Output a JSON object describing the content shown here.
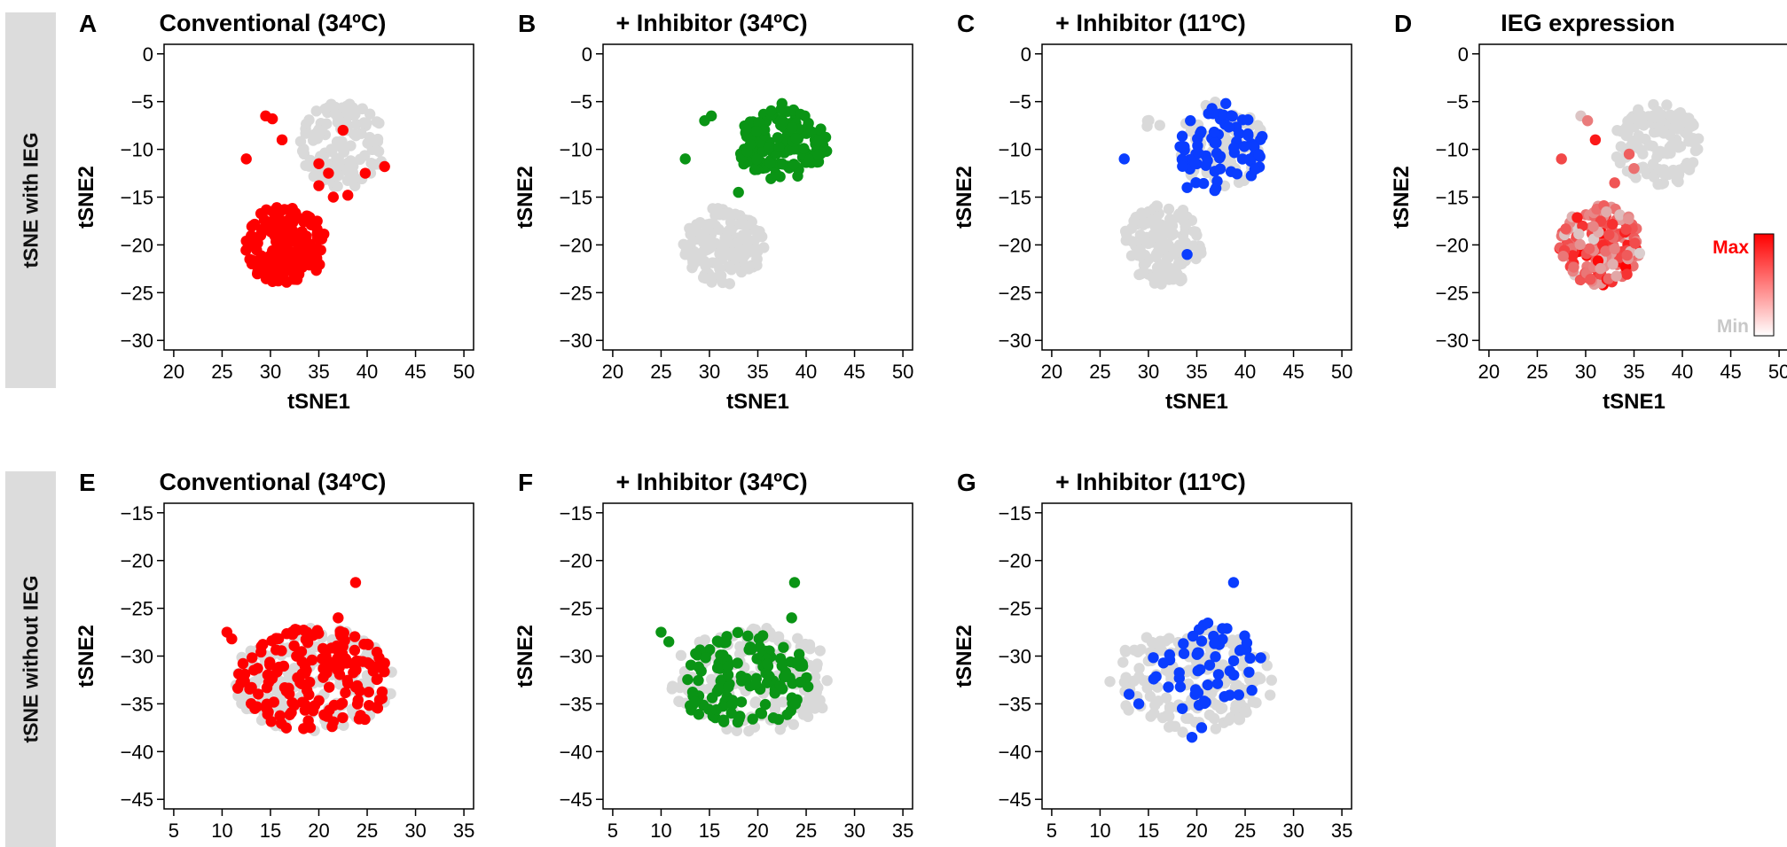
{
  "rows": [
    {
      "label": "tSNE with IEG"
    },
    {
      "label": "tSNE without IEG"
    }
  ],
  "colors": {
    "background_points": "#d9d9d9",
    "conventional": "#ff0000",
    "inhibitor34": "#0a9415",
    "inhibitor11": "#0a3dff",
    "ieg_max": "#ff0000",
    "ieg_min": "#d9d9d9"
  },
  "colorbar": {
    "max_label": "Max",
    "min_label": "Min"
  },
  "chart_data": [
    {
      "type": "scatter",
      "panel_letter": "A",
      "title": "Conventional (34ºC)",
      "xlabel": "tSNE1",
      "ylabel": "tSNE2",
      "xlim": [
        19,
        51
      ],
      "ylim": [
        -31,
        1
      ],
      "y_inverted": true,
      "xticks": [
        20,
        25,
        30,
        35,
        40,
        45,
        50
      ],
      "yticks": [
        0,
        -5,
        -10,
        -15,
        -20,
        -25,
        -30
      ],
      "highlight_color": "conventional",
      "background_clusters": [
        {
          "cx": 37.5,
          "cy": -9.5,
          "rx": 4.5,
          "ry": 4.5,
          "n": 130
        }
      ],
      "highlight_clusters": [
        {
          "cx": 31.5,
          "cy": -20.0,
          "rx": 4.2,
          "ry": 4.2,
          "n": 160
        }
      ],
      "highlight_points": [
        [
          29.5,
          -6.5
        ],
        [
          30.2,
          -6.8
        ],
        [
          31.2,
          -9.0
        ],
        [
          27.5,
          -11.0
        ],
        [
          35.0,
          -11.5
        ],
        [
          36.0,
          -12.5
        ],
        [
          37.5,
          -8.0
        ],
        [
          41.8,
          -11.8
        ],
        [
          39.8,
          -12.5
        ],
        [
          35.0,
          -13.8
        ],
        [
          36.5,
          -15.0
        ],
        [
          38.0,
          -14.8
        ]
      ]
    },
    {
      "type": "scatter",
      "panel_letter": "B",
      "title": "+ Inhibitor (34ºC)",
      "xlabel": "tSNE1",
      "ylabel": "tSNE2",
      "xlim": [
        19,
        51
      ],
      "ylim": [
        -31,
        1
      ],
      "y_inverted": true,
      "xticks": [
        20,
        25,
        30,
        35,
        40,
        45,
        50
      ],
      "yticks": [
        0,
        -5,
        -10,
        -15,
        -20,
        -25,
        -30
      ],
      "highlight_color": "inhibitor34",
      "background_clusters": [
        {
          "cx": 31.5,
          "cy": -20.0,
          "rx": 4.2,
          "ry": 4.2,
          "n": 150
        }
      ],
      "highlight_clusters": [
        {
          "cx": 37.5,
          "cy": -9.5,
          "rx": 4.8,
          "ry": 3.8,
          "n": 150
        }
      ],
      "highlight_points": [
        [
          27.5,
          -11.0
        ],
        [
          29.5,
          -7.0
        ],
        [
          30.2,
          -6.5
        ],
        [
          37.5,
          -5.2
        ],
        [
          33.0,
          -14.5
        ]
      ]
    },
    {
      "type": "scatter",
      "panel_letter": "C",
      "title": "+ Inhibitor (11ºC)",
      "xlabel": "tSNE1",
      "ylabel": "tSNE2",
      "xlim": [
        19,
        51
      ],
      "ylim": [
        -31,
        1
      ],
      "y_inverted": true,
      "xticks": [
        20,
        25,
        30,
        35,
        40,
        45,
        50
      ],
      "yticks": [
        0,
        -5,
        -10,
        -15,
        -20,
        -25,
        -30
      ],
      "highlight_color": "inhibitor11",
      "background_clusters": [
        {
          "cx": 37.5,
          "cy": -9.5,
          "rx": 4.5,
          "ry": 4.5,
          "n": 90
        },
        {
          "cx": 31.5,
          "cy": -20.0,
          "rx": 4.2,
          "ry": 4.2,
          "n": 150
        },
        {
          "cx": 30.0,
          "cy": -7.0,
          "rx": 1.5,
          "ry": 1.0,
          "n": 4
        }
      ],
      "highlight_clusters": [
        {
          "cx": 37.5,
          "cy": -10.0,
          "rx": 4.5,
          "ry": 4.5,
          "n": 75
        }
      ],
      "highlight_points": [
        [
          27.5,
          -11.0
        ],
        [
          34.0,
          -21.0
        ],
        [
          34.0,
          -14.0
        ],
        [
          38.0,
          -5.2
        ]
      ]
    },
    {
      "type": "scatter",
      "panel_letter": "D",
      "title": "IEG expression",
      "xlabel": "tSNE1",
      "ylabel": "tSNE2",
      "xlim": [
        19,
        51
      ],
      "ylim": [
        -31,
        1
      ],
      "y_inverted": true,
      "xticks": [
        20,
        25,
        30,
        35,
        40,
        45,
        50
      ],
      "yticks": [
        0,
        -5,
        -10,
        -15,
        -20,
        -25,
        -30
      ],
      "highlight_color": "ieg_max",
      "gradient": true,
      "background_clusters": [
        {
          "cx": 37.5,
          "cy": -9.5,
          "rx": 4.5,
          "ry": 4.5,
          "n": 130
        }
      ],
      "highlight_clusters": [
        {
          "cx": 31.5,
          "cy": -20.0,
          "rx": 4.2,
          "ry": 4.2,
          "n": 150
        }
      ],
      "highlight_points": [
        [
          29.5,
          -6.5
        ],
        [
          30.2,
          -7.0
        ],
        [
          31.0,
          -9.0
        ],
        [
          27.5,
          -11.0
        ],
        [
          33.0,
          -13.5
        ],
        [
          35.0,
          -12.0
        ],
        [
          34.5,
          -10.5
        ]
      ]
    },
    {
      "type": "scatter",
      "panel_letter": "E",
      "title": "Conventional (34ºC)",
      "xlabel": "",
      "ylabel": "tSNE2",
      "xlim": [
        4,
        36
      ],
      "ylim": [
        -46,
        -14
      ],
      "y_inverted": false,
      "xticks": [
        5,
        10,
        15,
        20,
        25,
        30,
        35
      ],
      "yticks": [
        -15,
        -20,
        -25,
        -30,
        -35,
        -40,
        -45
      ],
      "highlight_color": "conventional",
      "background_clusters": [
        {
          "cx": 19.5,
          "cy": -32.5,
          "rx": 8.5,
          "ry": 5.5,
          "n": 170
        }
      ],
      "highlight_clusters": [
        {
          "cx": 19.5,
          "cy": -32.5,
          "rx": 8.0,
          "ry": 5.5,
          "n": 170
        }
      ],
      "highlight_points": [
        [
          10.5,
          -27.5
        ],
        [
          11.0,
          -28.2
        ],
        [
          23.8,
          -22.3
        ],
        [
          22.0,
          -26.0
        ]
      ]
    },
    {
      "type": "scatter",
      "panel_letter": "F",
      "title": "+ Inhibitor (34ºC)",
      "xlabel": "",
      "ylabel": "tSNE2",
      "xlim": [
        4,
        36
      ],
      "ylim": [
        -46,
        -14
      ],
      "y_inverted": false,
      "xticks": [
        5,
        10,
        15,
        20,
        25,
        30,
        35
      ],
      "yticks": [
        -15,
        -20,
        -25,
        -30,
        -35,
        -40,
        -45
      ],
      "highlight_color": "inhibitor34",
      "background_clusters": [
        {
          "cx": 19.5,
          "cy": -32.5,
          "rx": 8.5,
          "ry": 5.5,
          "n": 170
        }
      ],
      "highlight_clusters": [
        {
          "cx": 18.5,
          "cy": -32.5,
          "rx": 7.0,
          "ry": 5.0,
          "n": 130
        }
      ],
      "highlight_points": [
        [
          10.0,
          -27.5
        ],
        [
          10.8,
          -28.5
        ],
        [
          23.8,
          -22.3
        ],
        [
          23.5,
          -26.0
        ]
      ]
    },
    {
      "type": "scatter",
      "panel_letter": "G",
      "title": "+ Inhibitor (11ºC)",
      "xlabel": "",
      "ylabel": "tSNE2",
      "xlim": [
        4,
        36
      ],
      "ylim": [
        -46,
        -14
      ],
      "y_inverted": false,
      "xticks": [
        5,
        10,
        15,
        20,
        25,
        30,
        35
      ],
      "yticks": [
        -15,
        -20,
        -25,
        -30,
        -35,
        -40,
        -45
      ],
      "highlight_color": "inhibitor11",
      "background_clusters": [
        {
          "cx": 19.5,
          "cy": -32.5,
          "rx": 8.5,
          "ry": 5.5,
          "n": 180
        }
      ],
      "highlight_clusters": [
        {
          "cx": 21.0,
          "cy": -31.0,
          "rx": 6.0,
          "ry": 4.5,
          "n": 55
        }
      ],
      "highlight_points": [
        [
          23.8,
          -22.3
        ],
        [
          13.0,
          -34.0
        ],
        [
          14.0,
          -35.0
        ],
        [
          19.5,
          -38.5
        ],
        [
          20.5,
          -37.5
        ],
        [
          18.5,
          -35.5
        ]
      ]
    }
  ]
}
